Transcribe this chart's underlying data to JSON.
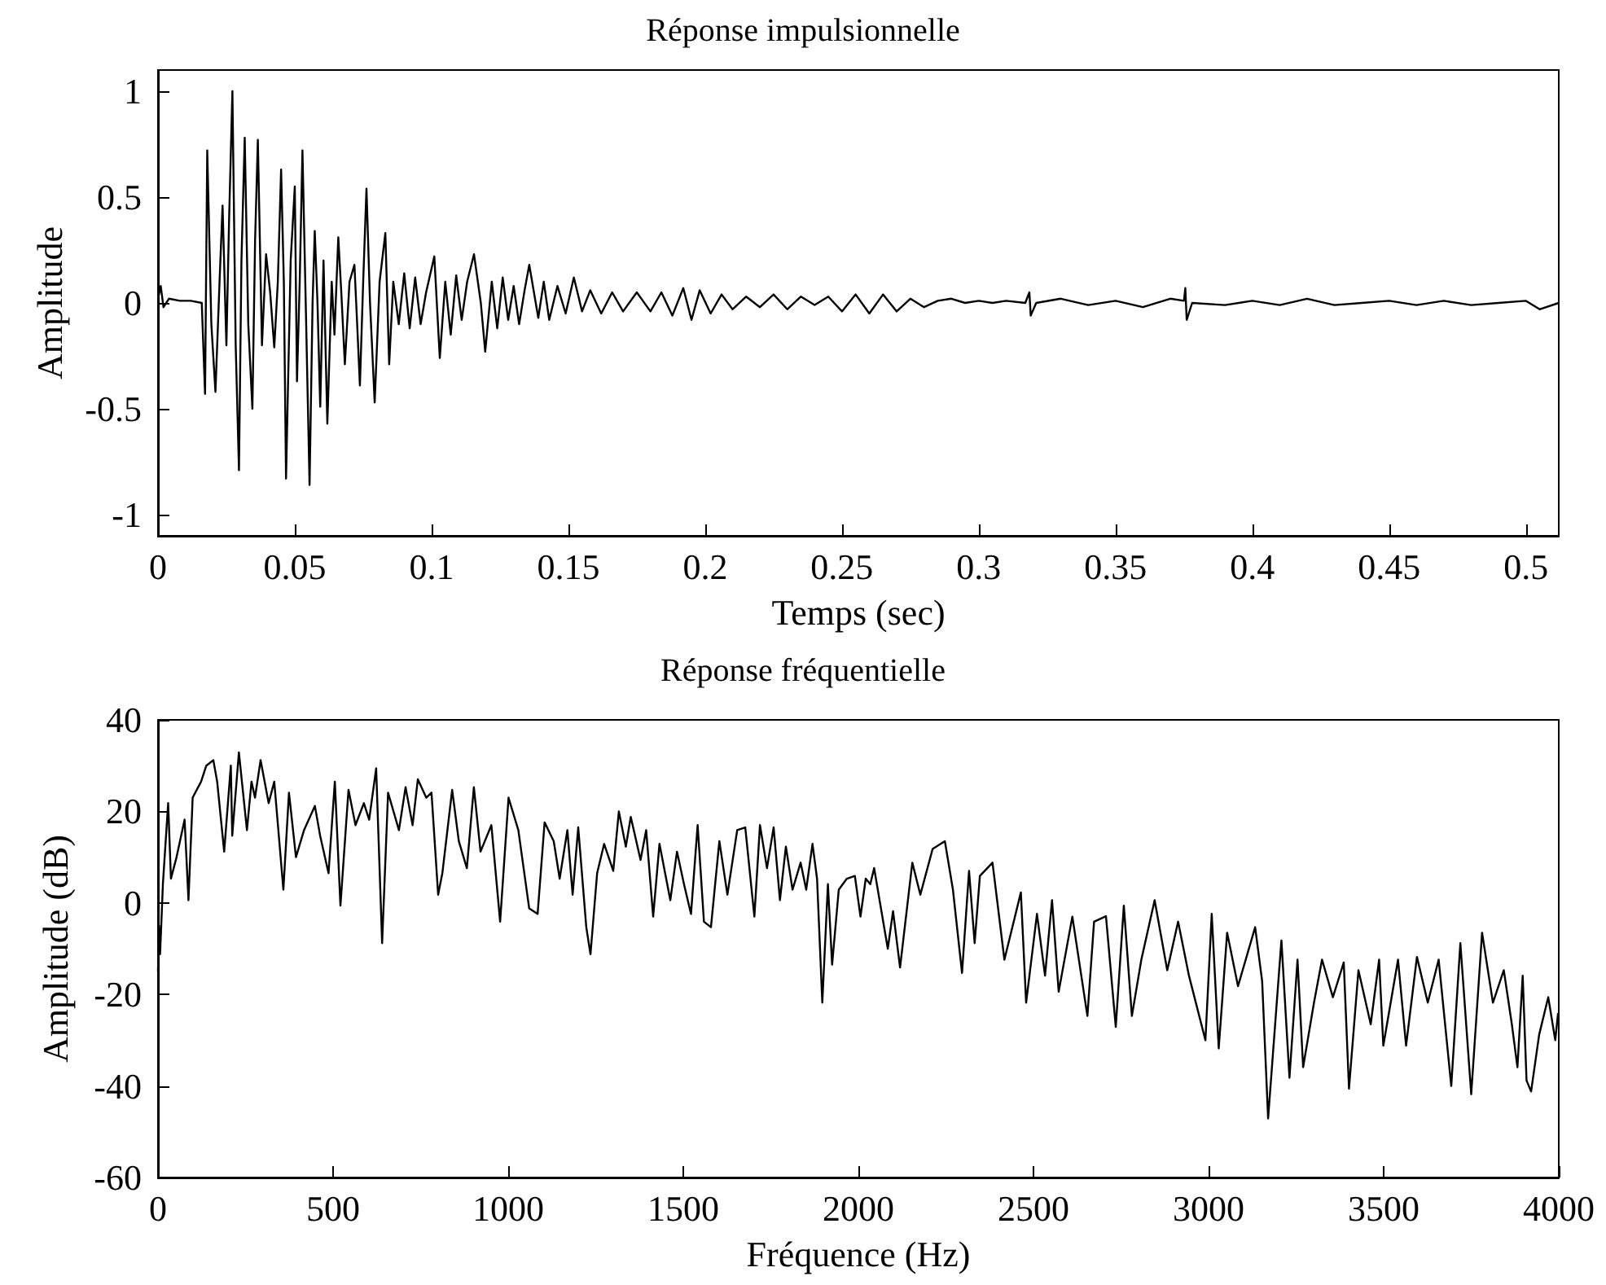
{
  "chart_data": [
    {
      "type": "line",
      "title": "Réponse impulsionnelle",
      "xlabel": "Temps (sec)",
      "ylabel": "Amplitude",
      "xlim": [
        0,
        0.512
      ],
      "xticks": [
        0,
        0.05,
        0.1,
        0.15,
        0.2,
        0.25,
        0.3,
        0.35,
        0.4,
        0.45,
        0.5
      ],
      "ylim": [
        -1.1,
        1.1
      ],
      "yticks": [
        -1,
        -0.5,
        0,
        0.5,
        1
      ],
      "grid": false,
      "marker": "none",
      "line_style": "solid",
      "series": [
        {
          "color": "#000000",
          "x": [
            0,
            0.001,
            0.002,
            0.004,
            0.008,
            0.012,
            0.016,
            0.0172,
            0.018,
            0.0195,
            0.021,
            0.0225,
            0.0236,
            0.025,
            0.026,
            0.0272,
            0.0284,
            0.0296,
            0.0305,
            0.0317,
            0.033,
            0.0345,
            0.0355,
            0.0365,
            0.038,
            0.0395,
            0.041,
            0.0425,
            0.0438,
            0.045,
            0.046,
            0.0468,
            0.0485,
            0.05,
            0.0508,
            0.0518,
            0.0528,
            0.054,
            0.0554,
            0.0565,
            0.0573,
            0.0583,
            0.0593,
            0.0605,
            0.0619,
            0.0635,
            0.0645,
            0.0659,
            0.067,
            0.0683,
            0.07,
            0.0718,
            0.0728,
            0.0738,
            0.075,
            0.0762,
            0.0775,
            0.0792,
            0.081,
            0.0831,
            0.0845,
            0.086,
            0.088,
            0.09,
            0.092,
            0.094,
            0.096,
            0.098,
            0.101,
            0.103,
            0.105,
            0.107,
            0.109,
            0.111,
            0.113,
            0.1155,
            0.118,
            0.1196,
            0.122,
            0.124,
            0.126,
            0.128,
            0.13,
            0.132,
            0.134,
            0.1357,
            0.139,
            0.141,
            0.143,
            0.146,
            0.149,
            0.152,
            0.155,
            0.158,
            0.162,
            0.166,
            0.17,
            0.175,
            0.18,
            0.184,
            0.188,
            0.192,
            0.195,
            0.198,
            0.202,
            0.206,
            0.21,
            0.215,
            0.22,
            0.225,
            0.23,
            0.235,
            0.24,
            0.245,
            0.25,
            0.255,
            0.26,
            0.265,
            0.27,
            0.275,
            0.28,
            0.285,
            0.29,
            0.295,
            0.3,
            0.305,
            0.31,
            0.317,
            0.3185,
            0.319,
            0.321,
            0.33,
            0.34,
            0.35,
            0.36,
            0.37,
            0.375,
            0.3755,
            0.376,
            0.378,
            0.39,
            0.4,
            0.41,
            0.42,
            0.43,
            0.44,
            0.45,
            0.46,
            0.47,
            0.48,
            0.49,
            0.5,
            0.505,
            0.512
          ],
          "values": [
            0.02,
            0.08,
            -0.02,
            0.02,
            0.01,
            0.01,
            0.0,
            -0.43,
            0.72,
            -0.1,
            -0.42,
            0.1,
            0.46,
            -0.2,
            0.4,
            1.0,
            -0.2,
            -0.79,
            0.2,
            0.78,
            -0.1,
            -0.5,
            0.3,
            0.77,
            -0.2,
            0.23,
            0.05,
            -0.21,
            0.1,
            0.63,
            0.1,
            -0.83,
            0.2,
            0.55,
            -0.37,
            0.1,
            0.72,
            0.0,
            -0.86,
            0.0,
            0.34,
            0.0,
            -0.49,
            0.2,
            -0.57,
            0.1,
            -0.15,
            0.31,
            0.05,
            -0.29,
            0.1,
            0.18,
            -0.1,
            -0.39,
            0.1,
            0.54,
            0.0,
            -0.47,
            0.1,
            0.33,
            -0.29,
            0.1,
            -0.1,
            0.14,
            -0.12,
            0.12,
            -0.1,
            0.05,
            0.22,
            -0.26,
            0.1,
            -0.15,
            0.13,
            -0.08,
            0.1,
            0.23,
            0.0,
            -0.23,
            0.1,
            -0.12,
            0.12,
            -0.08,
            0.08,
            -0.1,
            0.06,
            0.18,
            -0.07,
            0.1,
            -0.08,
            0.08,
            -0.05,
            0.12,
            -0.04,
            0.06,
            -0.05,
            0.05,
            -0.04,
            0.05,
            -0.04,
            0.05,
            -0.06,
            0.07,
            -0.08,
            0.06,
            -0.05,
            0.04,
            -0.03,
            0.03,
            -0.02,
            0.04,
            -0.03,
            0.03,
            -0.01,
            0.03,
            -0.04,
            0.04,
            -0.05,
            0.04,
            -0.04,
            0.02,
            -0.02,
            0.01,
            0.02,
            0.0,
            0.01,
            0.0,
            0.01,
            0.0,
            0.05,
            -0.06,
            0.0,
            0.02,
            -0.01,
            0.01,
            -0.02,
            0.02,
            0.01,
            0.07,
            -0.08,
            0.0,
            -0.01,
            0.01,
            -0.01,
            0.02,
            -0.01,
            0.0,
            0.01,
            -0.01,
            0.01,
            -0.01,
            0.0,
            0.01,
            -0.03,
            0.0
          ]
        }
      ]
    },
    {
      "type": "line",
      "title": "Réponse fréquentielle",
      "xlabel": "Fréquence (Hz)",
      "ylabel": "Amplitude (dB)",
      "xlim": [
        0,
        4000
      ],
      "xticks": [
        0,
        500,
        1000,
        1500,
        2000,
        2500,
        3000,
        3500,
        4000
      ],
      "ylim": [
        -60,
        40
      ],
      "yticks": [
        -60,
        -40,
        -20,
        0,
        20,
        40
      ],
      "grid": false,
      "marker": "none",
      "line_style": "solid",
      "series": [
        {
          "color": "#000000",
          "x": [
            0,
            3,
            6,
            14,
            29,
            37,
            53,
            76,
            87,
            99,
            123,
            138,
            158,
            169,
            189,
            208,
            212,
            231,
            254,
            267,
            277,
            293,
            316,
            332,
            358,
            374,
            394,
            417,
            448,
            463,
            487,
            505,
            521,
            544,
            564,
            588,
            603,
            623,
            640,
            657,
            688,
            707,
            727,
            742,
            766,
            781,
            800,
            812,
            840,
            859,
            882,
            902,
            921,
            952,
            977,
            1001,
            1029,
            1060,
            1084,
            1104,
            1130,
            1147,
            1169,
            1184,
            1200,
            1223,
            1235,
            1254,
            1274,
            1300,
            1316,
            1336,
            1350,
            1378,
            1394,
            1414,
            1432,
            1463,
            1482,
            1502,
            1522,
            1541,
            1559,
            1579,
            1603,
            1626,
            1654,
            1677,
            1703,
            1719,
            1739,
            1758,
            1776,
            1793,
            1812,
            1835,
            1851,
            1869,
            1882,
            1897,
            1913,
            1925,
            1944,
            1967,
            1990,
            2006,
            2021,
            2034,
            2045,
            2084,
            2099,
            2119,
            2154,
            2177,
            2212,
            2247,
            2270,
            2296,
            2316,
            2332,
            2347,
            2383,
            2417,
            2464,
            2479,
            2510,
            2533,
            2553,
            2572,
            2611,
            2654,
            2673,
            2707,
            2735,
            2758,
            2781,
            2808,
            2846,
            2882,
            2913,
            2944,
            2991,
            3009,
            3029,
            3053,
            3084,
            3133,
            3153,
            3170,
            3208,
            3231,
            3254,
            3270,
            3301,
            3324,
            3355,
            3386,
            3401,
            3428,
            3463,
            3487,
            3499,
            3541,
            3564,
            3595,
            3626,
            3657,
            3693,
            3719,
            3750,
            3781,
            3812,
            3843,
            3866,
            3882,
            3897,
            3908,
            3921,
            3944,
            3970,
            3990,
            3998
          ],
          "values": [
            -15,
            -5,
            -11.2,
            4.1,
            21.8,
            5.3,
            10,
            18.2,
            0.6,
            23,
            26.5,
            30,
            31.2,
            26.5,
            11.2,
            30,
            14.7,
            32.9,
            15.9,
            26.5,
            23,
            31.2,
            21.8,
            26.5,
            2.9,
            24.1,
            10,
            15.9,
            21.2,
            14.7,
            6.5,
            26.5,
            -0.6,
            24.7,
            17,
            21.8,
            18.2,
            29.4,
            -8.8,
            24.1,
            15.9,
            25.3,
            17,
            27,
            23,
            24.1,
            1.8,
            6.5,
            24.7,
            13.5,
            7.6,
            25.3,
            11.2,
            17,
            -4.1,
            23,
            15.9,
            -1.2,
            -2.4,
            17.6,
            13.5,
            5.3,
            15.9,
            1.8,
            16.5,
            -5.3,
            -11.2,
            6.5,
            12.9,
            7,
            20,
            12.3,
            18.8,
            9.4,
            15.9,
            -3,
            12.9,
            0.6,
            11.2,
            4.1,
            -2.4,
            17,
            -4.1,
            -5.3,
            13.5,
            1.8,
            15.9,
            16.5,
            -3,
            17,
            7.6,
            16.5,
            0.6,
            12.3,
            2.9,
            8.8,
            2.9,
            12.9,
            5.3,
            -21.8,
            4.1,
            -13.5,
            2.9,
            5.3,
            5.9,
            -3,
            5.3,
            4.1,
            7.6,
            -10,
            -1.8,
            -14.1,
            8.8,
            1.8,
            11.8,
            13.5,
            2.9,
            -15.3,
            7,
            -8.8,
            5.9,
            8.8,
            -12.4,
            2.3,
            -21.8,
            -2.4,
            -15.9,
            0.6,
            -19.4,
            -3,
            -24.7,
            -4.1,
            -2.9,
            -27.1,
            -0.6,
            -24.7,
            -12.4,
            0.6,
            -14.7,
            -4.1,
            -15.9,
            -30,
            -2.4,
            -31.8,
            -6.5,
            -18.2,
            -5.3,
            -17.1,
            -47.1,
            -8.2,
            -38.2,
            -12.4,
            -35.9,
            -21.8,
            -12.4,
            -20.6,
            -13,
            -40.6,
            -14.7,
            -26.5,
            -12.4,
            -31.2,
            -12.4,
            -31.2,
            -11.8,
            -21.8,
            -12.4,
            -40,
            -8.8,
            -41.8,
            -6.5,
            -21.8,
            -14.7,
            -26.5,
            -35.9,
            -15.9,
            -38.8,
            -41.2,
            -28.8,
            -20.6,
            -30,
            -24.1
          ]
        }
      ]
    }
  ]
}
